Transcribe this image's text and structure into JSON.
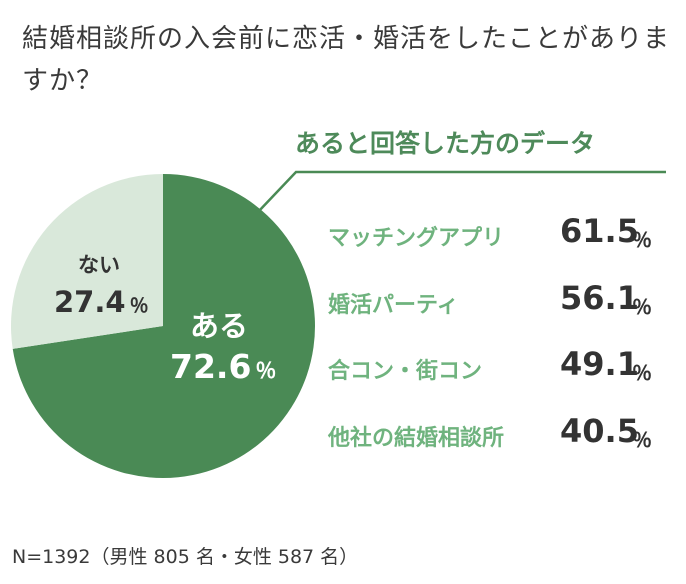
{
  "question": "結婚相談所の入会前に恋活・婚活をしたことがありますか？",
  "chart_data": {
    "type": "pie",
    "slices": [
      {
        "label": "ある",
        "value": 72.6,
        "unit": "％",
        "color": "#4a8a55"
      },
      {
        "label": "ない",
        "value": 27.4,
        "unit": "％",
        "color": "#d9e8da"
      }
    ]
  },
  "detail": {
    "title": "あると回答した方のデータ",
    "items": [
      {
        "label": "マッチングアプリ",
        "value": "61.5",
        "unit": "％"
      },
      {
        "label": "婚活パーティ",
        "value": "56.1",
        "unit": "％"
      },
      {
        "label": "合コン・街コン",
        "value": "49.1",
        "unit": "％"
      },
      {
        "label": "他社の結婚相談所",
        "value": "40.5",
        "unit": "％"
      }
    ]
  },
  "footnote": "N=1392（男性 805 名・女性 587 名）",
  "colors": {
    "accent_dark": "#4a8a55",
    "accent_light": "#6fb37e",
    "pie_light": "#d9e8da"
  }
}
